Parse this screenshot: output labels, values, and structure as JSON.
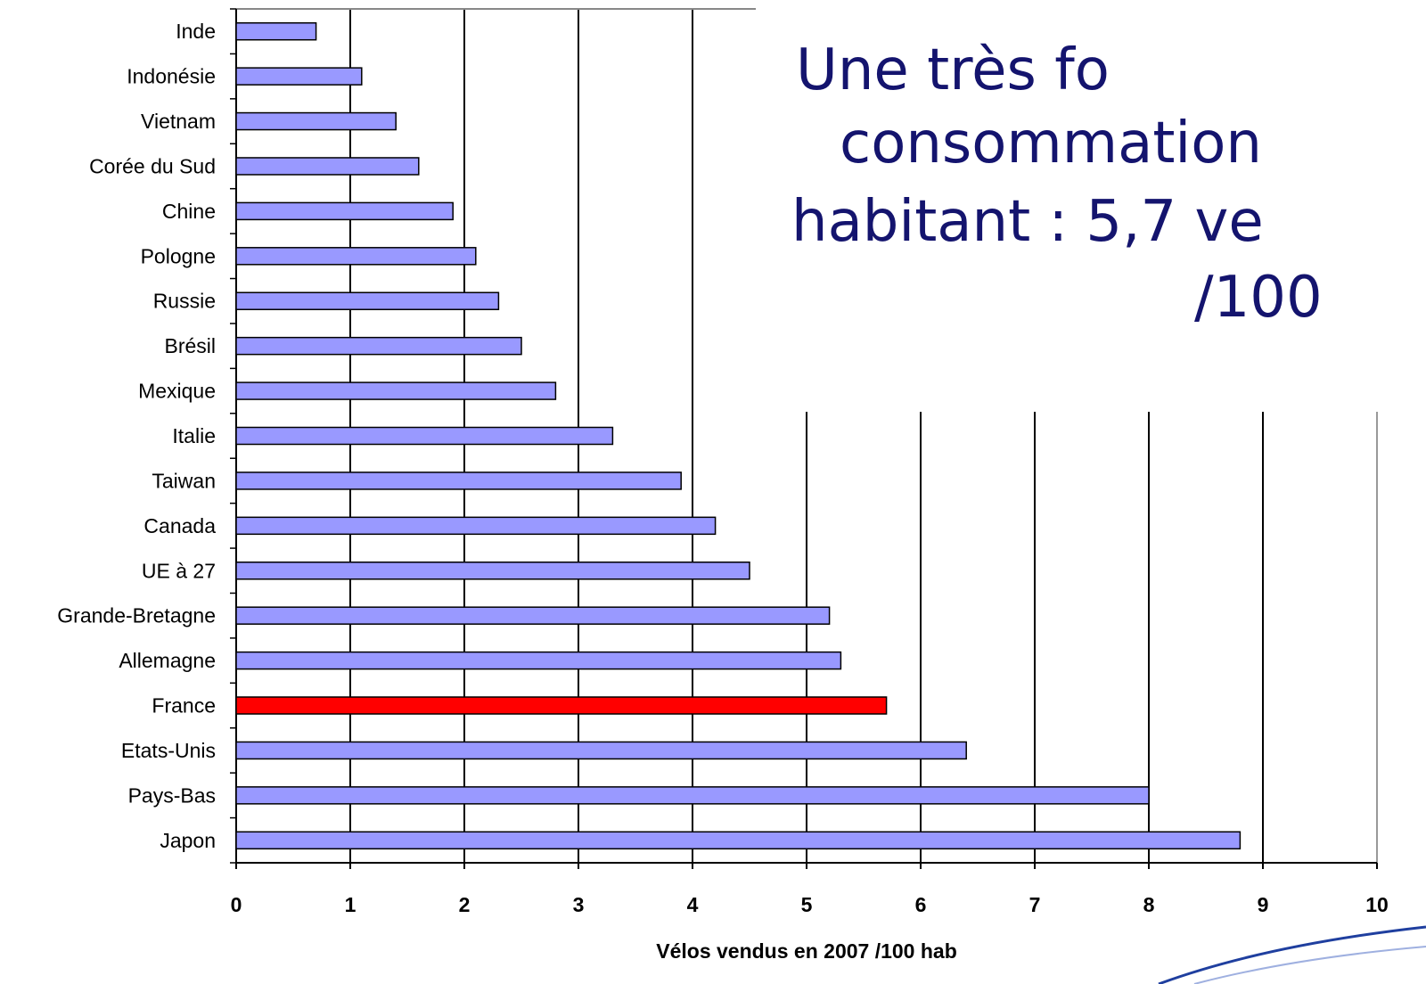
{
  "chart_data": {
    "type": "barh",
    "title_lines": [
      "Une très fo",
      "consommation",
      "habitant : 5,7 ve",
      "/100"
    ],
    "x_label": "Vélos vendus en 2007 /100 hab",
    "categories": [
      "Inde",
      "Indonésie",
      "Vietnam",
      "Corée du Sud",
      "Chine",
      "Pologne",
      "Russie",
      "Brésil",
      "Mexique",
      "Italie",
      "Taiwan",
      "Canada",
      "UE à 27",
      "Grande-Bretagne",
      "Allemagne",
      "France",
      "Etats-Unis",
      "Pays-Bas",
      "Japon"
    ],
    "values": [
      0.7,
      1.1,
      1.4,
      1.6,
      1.9,
      2.1,
      2.3,
      2.5,
      2.8,
      3.3,
      3.9,
      4.2,
      4.5,
      5.2,
      5.3,
      5.7,
      6.4,
      8.0,
      8.8
    ],
    "colors": [
      "#9999ff",
      "#9999ff",
      "#9999ff",
      "#9999ff",
      "#9999ff",
      "#9999ff",
      "#9999ff",
      "#9999ff",
      "#9999ff",
      "#9999ff",
      "#9999ff",
      "#9999ff",
      "#9999ff",
      "#9999ff",
      "#9999ff",
      "#ff0000",
      "#9999ff",
      "#9999ff",
      "#9999ff"
    ],
    "xlim": [
      0,
      10
    ],
    "xticks": [
      0,
      1,
      2,
      3,
      4,
      5,
      6,
      7,
      8,
      9,
      10
    ],
    "grid": true
  }
}
